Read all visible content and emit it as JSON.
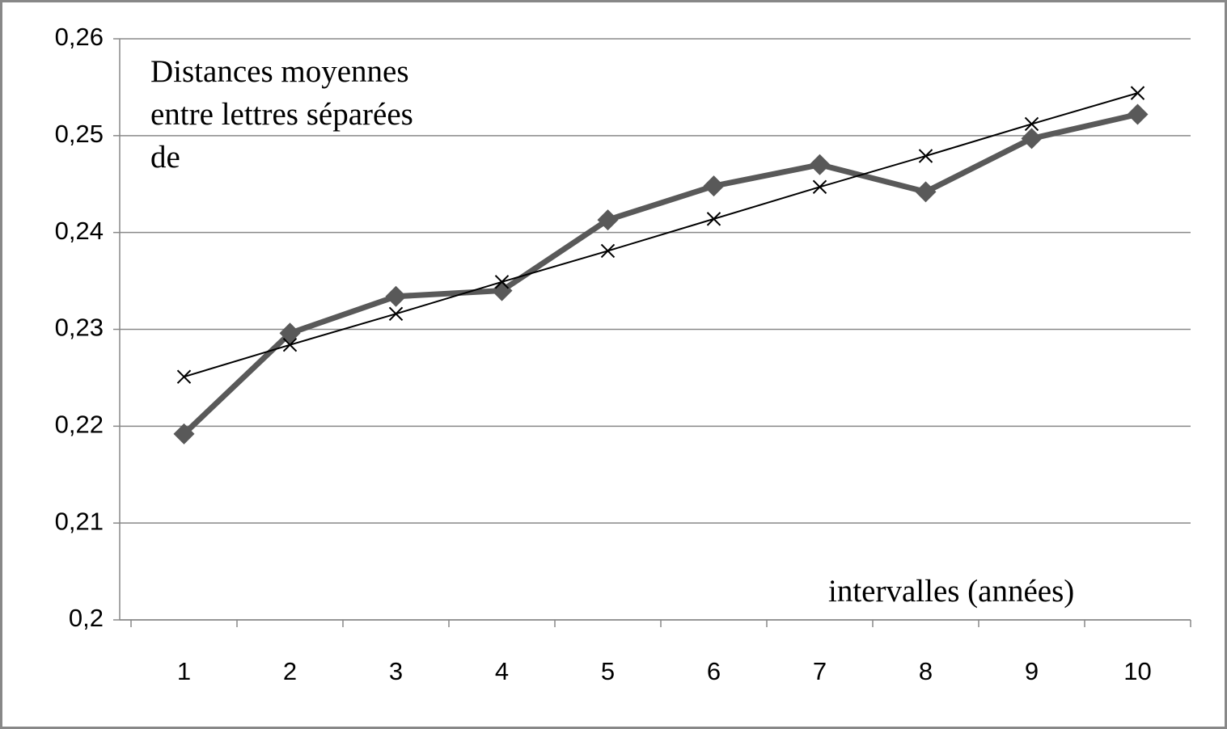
{
  "chart_data": {
    "type": "line",
    "y_label": "Distances moyennes entre lettres séparées de",
    "x_label": "intervalles (années)",
    "categories": [
      "1",
      "2",
      "3",
      "4",
      "5",
      "6",
      "7",
      "8",
      "9",
      "10"
    ],
    "series": [
      {
        "color": "#595959",
        "marker": "diamond",
        "values": [
          0.2192,
          0.2296,
          0.2334,
          0.234,
          0.2413,
          0.2448,
          0.247,
          0.2442,
          0.2497,
          0.2522
        ]
      },
      {
        "color": "#000000",
        "marker": "x",
        "values": [
          0.2251,
          0.2284,
          0.2316,
          0.2349,
          0.2381,
          0.2414,
          0.2447,
          0.2479,
          0.2512,
          0.2544
        ]
      }
    ],
    "ylim": [
      0.2,
      0.26
    ],
    "yticks": [
      {
        "value": 0.2,
        "label": "0,2"
      },
      {
        "value": 0.21,
        "label": "0,21"
      },
      {
        "value": 0.22,
        "label": "0,22"
      },
      {
        "value": 0.23,
        "label": "0,23"
      },
      {
        "value": 0.24,
        "label": "0,24"
      },
      {
        "value": 0.25,
        "label": "0,25"
      },
      {
        "value": 0.26,
        "label": "0,26"
      }
    ],
    "grid": true
  }
}
